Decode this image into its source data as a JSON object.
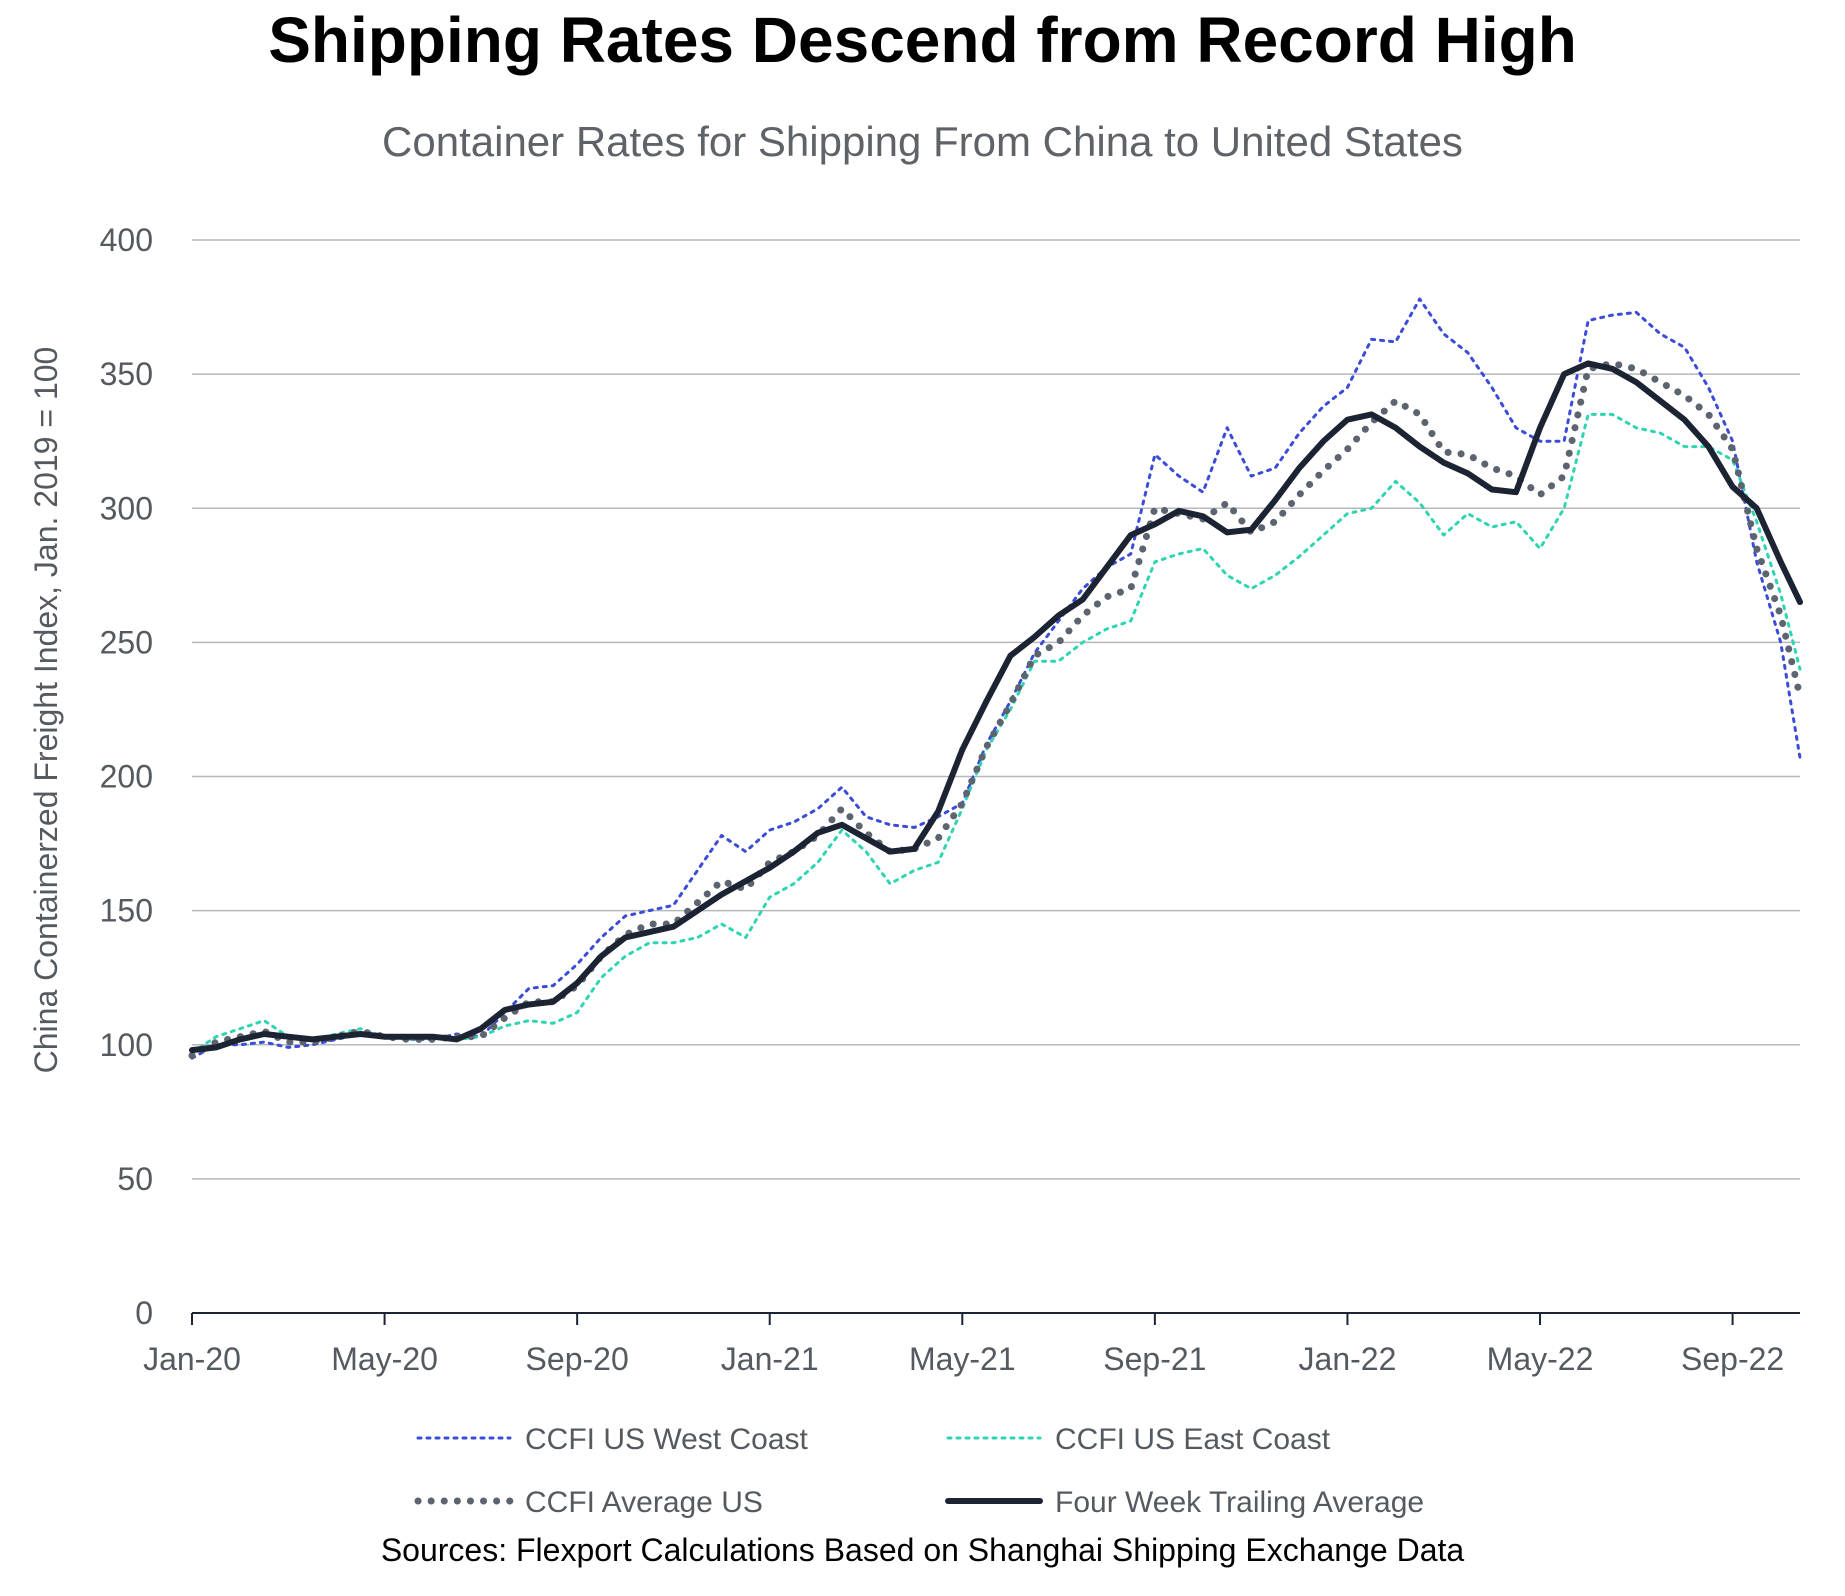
{
  "chart_data": {
    "type": "line",
    "title": "Shipping Rates Descend from Record High",
    "subtitle": "Container Rates for Shipping From China to United States",
    "ylabel": "China Containerzed Freight Index, Jan. 2019 = 100",
    "xlabel": "",
    "ylim": [
      0,
      400
    ],
    "yticks": [
      0,
      50,
      100,
      150,
      200,
      250,
      300,
      350,
      400
    ],
    "yticklabels": [
      "0",
      "50",
      "100",
      "150",
      "200",
      "250",
      "300",
      "350",
      "400"
    ],
    "xlim": [
      0,
      33.4
    ],
    "xticks": [
      0,
      4,
      8,
      12,
      16,
      20,
      24,
      28,
      32
    ],
    "xticklabels": [
      "Jan-20",
      "May-20",
      "Sep-20",
      "Jan-21",
      "May-21",
      "Sep-21",
      "Jan-22",
      "May-22",
      "Sep-22"
    ],
    "x_unit": "months since Jan 2020",
    "grid": true,
    "source": "Sources: Flexport Calculations Based on Shanghai Shipping Exchange Data",
    "series": [
      {
        "name": "CCFI US West Coast",
        "color": "#3b4cd8",
        "style": "dotted",
        "x": [
          0,
          0.5,
          1,
          1.5,
          2,
          2.5,
          3,
          3.5,
          4,
          4.5,
          5,
          5.5,
          6,
          6.5,
          7,
          7.5,
          8,
          8.5,
          9,
          9.5,
          10,
          10.5,
          11,
          11.5,
          12,
          12.5,
          13,
          13.5,
          14,
          14.5,
          15,
          15.5,
          16,
          16.5,
          17,
          17.5,
          18,
          18.5,
          19,
          19.5,
          20,
          20.5,
          21,
          21.5,
          22,
          22.5,
          23,
          23.5,
          24,
          24.5,
          25,
          25.5,
          26,
          26.5,
          27,
          27.5,
          28,
          28.5,
          29,
          29.5,
          30,
          30.5,
          31,
          31.5,
          32,
          32.5,
          33,
          33.4
        ],
        "values": [
          95,
          100,
          100,
          101,
          99,
          100,
          102,
          104,
          103,
          102,
          102,
          104,
          103,
          112,
          121,
          122,
          130,
          140,
          148,
          150,
          152,
          165,
          178,
          172,
          180,
          183,
          188,
          196,
          185,
          182,
          181,
          185,
          190,
          212,
          228,
          246,
          258,
          270,
          278,
          283,
          320,
          312,
          306,
          330,
          312,
          315,
          328,
          338,
          345,
          363,
          362,
          378,
          365,
          358,
          345,
          330,
          325,
          325,
          370,
          372,
          373,
          365,
          360,
          345,
          325,
          280,
          250,
          207
        ]
      },
      {
        "name": "CCFI US East Coast",
        "color": "#2fd5b0",
        "style": "dotted",
        "x": [
          0,
          0.5,
          1,
          1.5,
          2,
          2.5,
          3,
          3.5,
          4,
          4.5,
          5,
          5.5,
          6,
          6.5,
          7,
          7.5,
          8,
          8.5,
          9,
          9.5,
          10,
          10.5,
          11,
          11.5,
          12,
          12.5,
          13,
          13.5,
          14,
          14.5,
          15,
          15.5,
          16,
          16.5,
          17,
          17.5,
          18,
          18.5,
          19,
          19.5,
          20,
          20.5,
          21,
          21.5,
          22,
          22.5,
          23,
          23.5,
          24,
          24.5,
          25,
          25.5,
          26,
          26.5,
          27,
          27.5,
          28,
          28.5,
          29,
          29.5,
          30,
          30.5,
          31,
          31.5,
          32,
          32.5,
          33,
          33.4
        ],
        "values": [
          97,
          103,
          106,
          109,
          103,
          102,
          104,
          106,
          103,
          102,
          103,
          102,
          103,
          107,
          109,
          108,
          112,
          125,
          133,
          138,
          138,
          140,
          145,
          140,
          155,
          160,
          168,
          180,
          172,
          160,
          165,
          168,
          188,
          210,
          225,
          243,
          243,
          250,
          255,
          258,
          280,
          283,
          285,
          275,
          270,
          275,
          282,
          290,
          298,
          300,
          310,
          302,
          290,
          298,
          293,
          295,
          285,
          300,
          335,
          335,
          330,
          328,
          323,
          323,
          318,
          295,
          268,
          240
        ]
      },
      {
        "name": "CCFI Average US",
        "color": "#5c6470",
        "style": "dotted-thick",
        "x": [
          0,
          0.5,
          1,
          1.5,
          2,
          2.5,
          3,
          3.5,
          4,
          4.5,
          5,
          5.5,
          6,
          6.5,
          7,
          7.5,
          8,
          8.5,
          9,
          9.5,
          10,
          10.5,
          11,
          11.5,
          12,
          12.5,
          13,
          13.5,
          14,
          14.5,
          15,
          15.5,
          16,
          16.5,
          17,
          17.5,
          18,
          18.5,
          19,
          19.5,
          20,
          20.5,
          21,
          21.5,
          22,
          22.5,
          23,
          23.5,
          24,
          24.5,
          25,
          25.5,
          26,
          26.5,
          27,
          27.5,
          28,
          28.5,
          29,
          29.5,
          30,
          30.5,
          31,
          31.5,
          32,
          32.5,
          33,
          33.4
        ],
        "values": [
          96,
          101,
          103,
          105,
          101,
          101,
          103,
          105,
          103,
          102,
          102,
          103,
          103,
          110,
          116,
          116,
          122,
          133,
          141,
          145,
          145,
          153,
          161,
          158,
          168,
          172,
          178,
          188,
          179,
          172,
          173,
          177,
          190,
          211,
          227,
          245,
          250,
          260,
          267,
          270,
          300,
          298,
          296,
          302,
          291,
          295,
          305,
          314,
          322,
          332,
          340,
          335,
          321,
          320,
          315,
          312,
          305,
          312,
          352,
          354,
          352,
          347,
          342,
          335,
          322,
          285,
          260,
          230
        ]
      },
      {
        "name": "Four Week Trailing Average",
        "color": "#1c2433",
        "style": "solid",
        "x": [
          0,
          0.5,
          1,
          1.5,
          2,
          2.5,
          3,
          3.5,
          4,
          4.5,
          5,
          5.5,
          6,
          6.5,
          7,
          7.5,
          8,
          8.5,
          9,
          9.5,
          10,
          10.5,
          11,
          11.5,
          12,
          12.5,
          13,
          13.5,
          14,
          14.5,
          15,
          15.5,
          16,
          16.5,
          17,
          17.5,
          18,
          18.5,
          19,
          19.5,
          20,
          20.5,
          21,
          21.5,
          22,
          22.5,
          23,
          23.5,
          24,
          24.5,
          25,
          25.5,
          26,
          26.5,
          27,
          27.5,
          28,
          28.5,
          29,
          29.5,
          30,
          30.5,
          31,
          31.5,
          32,
          32.5,
          33,
          33.4
        ],
        "values": [
          98,
          99,
          102,
          104,
          103,
          102,
          103,
          104,
          103,
          103,
          103,
          102,
          106,
          113,
          115,
          116,
          123,
          133,
          140,
          142,
          144,
          150,
          156,
          161,
          166,
          172,
          179,
          182,
          177,
          172,
          173,
          187,
          210,
          228,
          245,
          252,
          260,
          266,
          278,
          290,
          294,
          299,
          297,
          291,
          292,
          303,
          315,
          325,
          333,
          335,
          330,
          323,
          317,
          313,
          307,
          306,
          330,
          350,
          354,
          352,
          347,
          340,
          333,
          323,
          308,
          300,
          280,
          265
        ]
      }
    ]
  }
}
